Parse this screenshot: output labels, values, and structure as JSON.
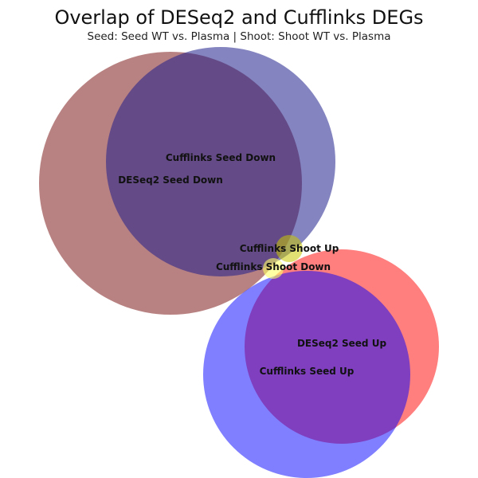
{
  "title": "Overlap of DESeq2 and Cufflinks DEGs",
  "subtitle": "Seed: Seed WT vs. Plasma | Shoot: Shoot WT vs. Plasma",
  "sets": [
    {
      "id": "deseq2-seed-down",
      "label": "DESeq2 Seed Down",
      "color": "#8b2e2e"
    },
    {
      "id": "cufflinks-seed-down",
      "label": "Cufflinks Seed Down",
      "color": "#1f1f8c"
    },
    {
      "id": "cufflinks-shoot-up",
      "label": "Cufflinks Shoot Up",
      "color": "#c8c800"
    },
    {
      "id": "cufflinks-shoot-down",
      "label": "Cufflinks Shoot Down",
      "color": "#ffff66"
    },
    {
      "id": "deseq2-seed-up",
      "label": "DESeq2 Seed Up",
      "color": "#ff0000"
    },
    {
      "id": "cufflinks-seed-up",
      "label": "Cufflinks Seed Up",
      "color": "#0000ff"
    }
  ]
}
